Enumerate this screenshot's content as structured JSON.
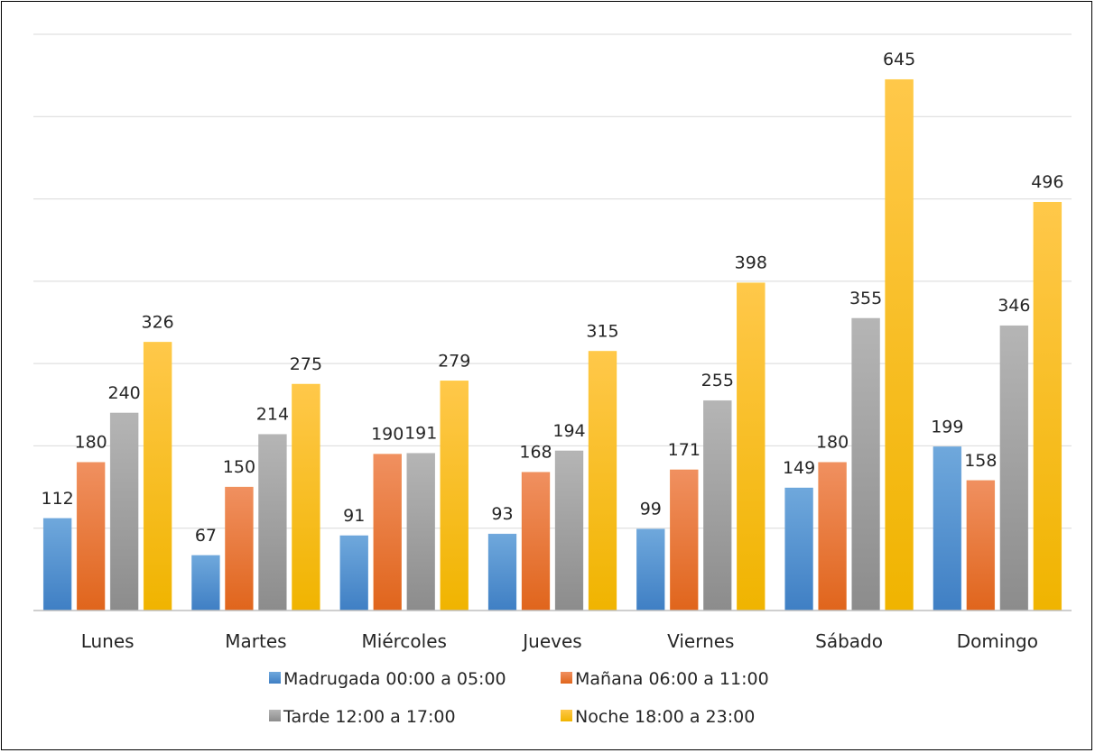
{
  "chart_data": {
    "type": "bar",
    "title": "",
    "xlabel": "",
    "ylabel": "",
    "ylim": [
      0,
      700
    ],
    "grid": true,
    "legend": "bottom",
    "categories": [
      "Lunes",
      "Martes",
      "Miércoles",
      "Jueves",
      "Viernes",
      "Sábado",
      "Domingo"
    ],
    "series": [
      {
        "name": "Madrugada 00:00 a 05:00",
        "color": "#5b9bd5",
        "values": [
          112,
          67,
          91,
          93,
          99,
          149,
          199
        ]
      },
      {
        "name": "Mañana 06:00 a 11:00",
        "color": "#ed7d31",
        "values": [
          180,
          150,
          190,
          168,
          171,
          180,
          158
        ]
      },
      {
        "name": "Tarde 12:00 a 17:00",
        "color": "#a5a5a5",
        "values": [
          240,
          214,
          191,
          194,
          255,
          355,
          346
        ]
      },
      {
        "name": "Noche 18:00 a 23:00",
        "color": "#ffc000",
        "values": [
          326,
          275,
          279,
          315,
          398,
          645,
          496
        ]
      }
    ]
  }
}
